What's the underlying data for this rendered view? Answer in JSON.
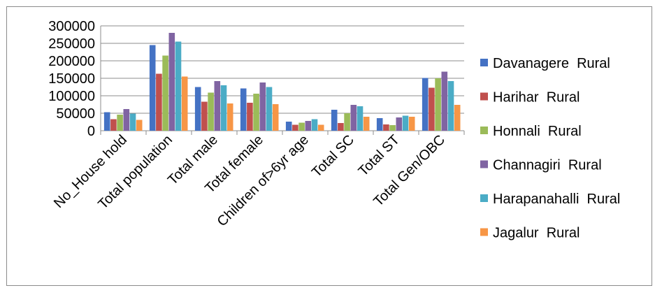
{
  "chart_data": {
    "type": "bar",
    "title": "",
    "xlabel": "",
    "ylabel": "",
    "ylim": [
      0,
      300000
    ],
    "yticks": [
      "300000",
      "250000",
      "200000",
      "150000",
      "100000",
      "50000",
      "0"
    ],
    "grid": true,
    "legend_position": "right",
    "categories": [
      "No_House hold",
      "Total population",
      "Total male",
      "Total female",
      "Children of>6yr age",
      "Total SC",
      "Total ST",
      "Total Gen/OBC"
    ],
    "series": [
      {
        "name": "Davanagere  Rural",
        "color": "#4472c4",
        "values": [
          53000,
          245000,
          125000,
          121000,
          26000,
          60000,
          36000,
          151000
        ]
      },
      {
        "name": "Harihar  Rural",
        "color": "#c0504d",
        "values": [
          33000,
          163000,
          83000,
          80000,
          17000,
          22000,
          18000,
          123000
        ]
      },
      {
        "name": "Honnali  Rural",
        "color": "#9bbb59",
        "values": [
          46000,
          215000,
          109000,
          106000,
          23000,
          50000,
          16000,
          150000
        ]
      },
      {
        "name": "Channagiri  Rural",
        "color": "#8064a2",
        "values": [
          62000,
          280000,
          142000,
          138000,
          28000,
          74000,
          38000,
          169000
        ]
      },
      {
        "name": "Harapanahalli  Rural",
        "color": "#4bacc6",
        "values": [
          49000,
          255000,
          130000,
          125000,
          33000,
          70000,
          43000,
          142000
        ]
      },
      {
        "name": "Jagalur  Rural",
        "color": "#f79646",
        "values": [
          31000,
          155000,
          78000,
          76000,
          17000,
          40000,
          40000,
          74000
        ]
      }
    ]
  }
}
